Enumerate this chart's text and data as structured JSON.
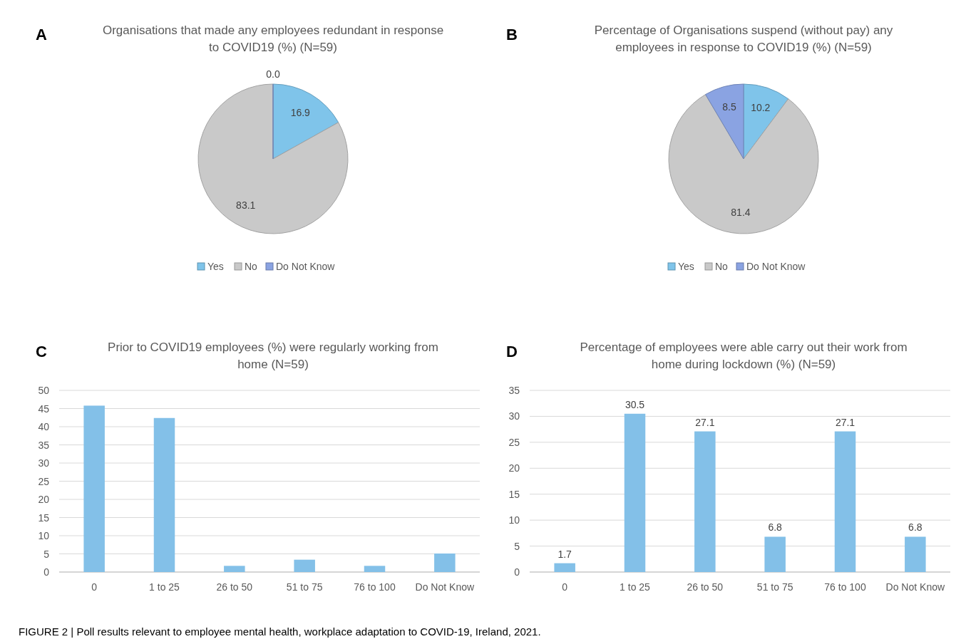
{
  "chart_data": [
    {
      "type": "pie",
      "title": "Organisations that made any employees redundant in response to COVID19 (%) (N=59)",
      "categories": [
        "Yes",
        "No",
        "Do Not Know"
      ],
      "values": [
        16.9,
        83.1,
        0.0
      ],
      "value_labels": [
        "16.9",
        "83.1",
        "0.0"
      ],
      "colors": [
        "#7fc4ea",
        "#c9c9c9",
        "#8aa3e2"
      ],
      "legend": "bottom",
      "annotations": [
        "A"
      ]
    },
    {
      "type": "pie",
      "title": "Percentage of Organisations suspend (without pay) any employees in response to COVID19 (%) (N=59)",
      "categories": [
        "Yes",
        "No",
        "Do Not Know"
      ],
      "values": [
        10.2,
        81.4,
        8.5
      ],
      "value_labels": [
        "10.2",
        "81.4",
        "8.5"
      ],
      "colors": [
        "#7fc4ea",
        "#c9c9c9",
        "#8aa3e2"
      ],
      "legend": "bottom",
      "annotations": [
        "B"
      ]
    },
    {
      "type": "bar",
      "title": "Prior to COVID19 employees (%) were regularly working from home (N=59)",
      "categories": [
        "0",
        "1 to 25",
        "26 to 50",
        "51 to 75",
        "76 to 100",
        "Do Not Know"
      ],
      "values": [
        45.8,
        42.4,
        1.7,
        3.4,
        1.7,
        5.1
      ],
      "color": "#83c0e8",
      "ylim": [
        0,
        50
      ],
      "yticks": [
        0,
        5,
        10,
        15,
        20,
        25,
        30,
        35,
        40,
        45,
        50
      ],
      "grid": "y",
      "annotations": [
        "C"
      ]
    },
    {
      "type": "bar",
      "title": "Percentage of employees were able carry out their work from home during lockdown (%) (N=59)",
      "categories": [
        "0",
        "1 to 25",
        "26 to 50",
        "51 to 75",
        "76 to 100",
        "Do Not Know"
      ],
      "values": [
        1.7,
        30.5,
        27.1,
        6.8,
        27.1,
        6.8
      ],
      "color": "#83c0e8",
      "ylim": [
        0,
        35
      ],
      "yticks": [
        0,
        5,
        10,
        15,
        20,
        25,
        30,
        35
      ],
      "grid": "y",
      "data_labels": true,
      "annotations": [
        "D",
        "FIGURE 2 | Poll results relevant to employee mental health, workplace adaptation to COVID-19, Ireland, 2021."
      ]
    }
  ]
}
